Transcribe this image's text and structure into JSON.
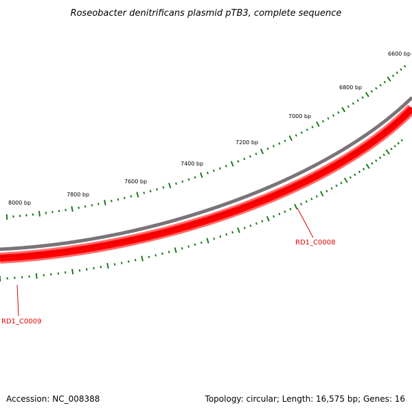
{
  "title": "Roseobacter denitrificans plasmid pTB3, complete sequence",
  "accession_text": "Accession: NC_008388",
  "topology_text": "Topology: circular; Length: 16,575 bp; Genes: 16",
  "colors": {
    "backbone": "#7a7478",
    "gene_fill": "#ff0000",
    "gene_outline": "#ff5a5a",
    "tick": "#1a7a1a",
    "gene_label": "#e00000"
  },
  "scale": {
    "labels": [
      "6600 bp",
      "6800 bp",
      "7000 bp",
      "7200 bp",
      "7400 bp",
      "7600 bp",
      "7800 bp",
      "8000 bp"
    ]
  },
  "genes": [
    {
      "label": "RD1_C0008"
    },
    {
      "label": "RD1_C0009"
    }
  ]
}
